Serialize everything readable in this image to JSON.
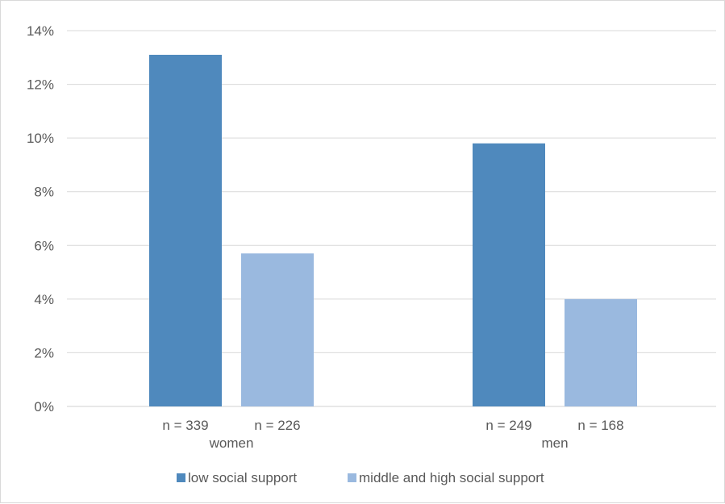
{
  "chart_data": {
    "type": "bar",
    "groups": [
      {
        "label": "women",
        "sublabels": [
          "n = 339",
          "n = 226"
        ]
      },
      {
        "label": "men",
        "sublabels": [
          "n = 249",
          "n = 168"
        ]
      }
    ],
    "series": [
      {
        "name": "low social support",
        "color": "#4f89bd",
        "values": [
          13.1,
          9.8
        ]
      },
      {
        "name": "middle and high social support",
        "color": "#9ab9df",
        "values": [
          5.7,
          4.0
        ]
      }
    ],
    "y_ticks": [
      "0%",
      "2%",
      "4%",
      "6%",
      "8%",
      "10%",
      "12%",
      "14%"
    ],
    "ylim": [
      0,
      14
    ],
    "grid": true,
    "legend_position": "bottom"
  }
}
